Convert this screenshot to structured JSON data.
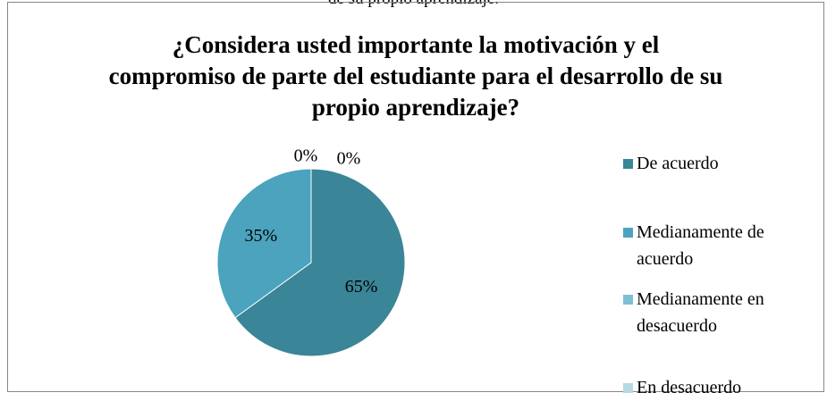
{
  "caption": "de su propio aprendizaje.",
  "chart_data": {
    "type": "pie",
    "title": "¿Considera usted importante la motivación y el compromiso de parte del estudiante para el desarrollo de su propio aprendizaje?",
    "categories": [
      "De acuerdo",
      "Medianamente de acuerdo",
      "Medianamente en desacuerdo",
      "En desacuerdo"
    ],
    "values": [
      65,
      35,
      0,
      0
    ],
    "value_labels": [
      "65%",
      "35%",
      "0%",
      "0%"
    ],
    "colors": [
      "#3a8597",
      "#4ba3bd",
      "#7dc0d4",
      "#b7d9e4"
    ],
    "legend": "right"
  }
}
